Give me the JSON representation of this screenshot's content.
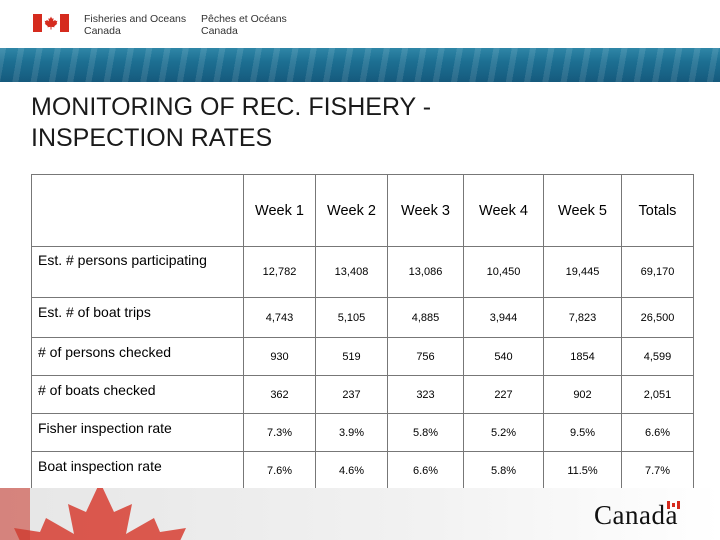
{
  "header": {
    "dept_en_line1": "Fisheries and Oceans",
    "dept_en_line2": "Canada",
    "dept_fr_line1": "Pêches et Océans",
    "dept_fr_line2": "Canada",
    "flag_icon": "canada-flag-icon"
  },
  "slide": {
    "title_line1": "MONITORING OF REC. FISHERY  -",
    "title_line2": "INSPECTION RATES"
  },
  "table": {
    "columns": [
      "Week 1",
      "Week 2",
      "Week 3",
      "Week 4",
      "Week 5",
      "Totals"
    ],
    "rows": [
      {
        "label": "Est. # persons participating",
        "values": [
          "12,782",
          "13,408",
          "13,086",
          "10,450",
          "19,445",
          "69,170"
        ]
      },
      {
        "label": "Est. # of boat trips",
        "values": [
          "4,743",
          "5,105",
          "4,885",
          "3,944",
          "7,823",
          "26,500"
        ]
      },
      {
        "label": "# of persons checked",
        "values": [
          "930",
          "519",
          "756",
          "540",
          "1854",
          "4,599"
        ]
      },
      {
        "label": "# of boats checked",
        "values": [
          "362",
          "237",
          "323",
          "227",
          "902",
          "2,051"
        ]
      },
      {
        "label": "Fisher inspection rate",
        "values": [
          "7.3%",
          "3.9%",
          "5.8%",
          "5.2%",
          "9.5%",
          "6.6%"
        ]
      },
      {
        "label": "Boat inspection rate",
        "values": [
          "7.6%",
          "4.6%",
          "6.6%",
          "5.8%",
          "11.5%",
          "7.7%"
        ]
      }
    ]
  },
  "footer": {
    "wordmark": "Canada",
    "colors": {
      "red": "#d52b1e"
    }
  }
}
